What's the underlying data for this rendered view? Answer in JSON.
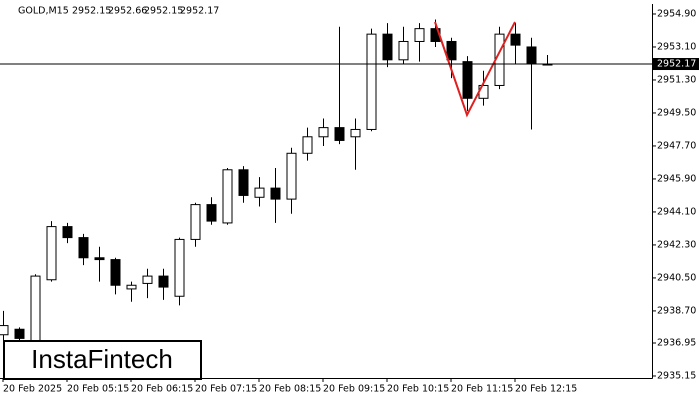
{
  "chart_data": {
    "type": "candlestick",
    "title": "GOLD,M15",
    "watermark": "InstaFintech",
    "categories": [
      "20 Feb 2025",
      null,
      null,
      null,
      "20 Feb 05:15",
      null,
      null,
      null,
      "20 Feb 06:15",
      null,
      null,
      null,
      "20 Feb 07:15",
      null,
      null,
      null,
      "20 Feb 08:15",
      null,
      null,
      null,
      "20 Feb 09:15",
      null,
      null,
      null,
      "20 Feb 10:15",
      null,
      null,
      null,
      "20 Feb 11:15",
      null,
      null,
      null,
      "20 Feb 12:15",
      null,
      null
    ],
    "series": [
      {
        "name": "GOLD",
        "color": "#000000",
        "open": [
          2937.4,
          2937.7,
          2936.8,
          2940.4,
          2943.3,
          2942.7,
          2941.6,
          2941.5,
          2939.9,
          2940.2,
          2940.6,
          2939.5,
          2942.6,
          2944.5,
          2943.5,
          2946.4,
          2944.9,
          2945.4,
          2944.8,
          2947.3,
          2948.2,
          2948.7,
          2948.2,
          2948.6,
          2953.8,
          2952.4,
          2953.4,
          2954.1,
          2953.4,
          2952.3,
          2950.3,
          2951.0,
          2953.8,
          2953.1,
          2952.15
        ],
        "high": [
          2938.7,
          2937.8,
          2940.7,
          2943.6,
          2943.5,
          2942.9,
          2942.2,
          2941.6,
          2940.3,
          2941.0,
          2941.0,
          2942.7,
          2944.6,
          2944.9,
          2946.5,
          2946.6,
          2946.0,
          2946.5,
          2947.6,
          2948.7,
          2949.2,
          2954.2,
          2949.2,
          2954.1,
          2954.4,
          2954.2,
          2954.4,
          2954.6,
          2953.6,
          2952.6,
          2951.8,
          2954.2,
          2954.4,
          2953.6,
          2952.66
        ],
        "low": [
          2936.5,
          2936.3,
          2936.5,
          2940.3,
          2942.4,
          2941.2,
          2940.3,
          2939.6,
          2939.2,
          2939.4,
          2939.3,
          2939.0,
          2942.2,
          2943.4,
          2943.4,
          2944.6,
          2944.4,
          2943.5,
          2944.0,
          2946.9,
          2947.7,
          2947.8,
          2946.4,
          2948.5,
          2952.0,
          2952.2,
          2952.3,
          2953.1,
          2951.4,
          2949.6,
          2949.9,
          2950.8,
          2952.2,
          2948.6,
          2952.15
        ],
        "close": [
          2937.9,
          2937.2,
          2940.6,
          2943.3,
          2942.7,
          2941.6,
          2941.5,
          2940.1,
          2940.1,
          2940.6,
          2940.0,
          2942.6,
          2944.5,
          2943.6,
          2946.4,
          2945.0,
          2945.4,
          2944.8,
          2947.3,
          2948.2,
          2948.7,
          2948.0,
          2948.6,
          2953.8,
          2952.4,
          2953.4,
          2954.1,
          2953.4,
          2952.4,
          2950.3,
          2951.0,
          2953.8,
          2953.2,
          2952.2,
          2952.17
        ]
      }
    ],
    "ylim": [
      2935.04,
      2955.39
    ],
    "yticks": [
      {
        "value": 2954.9,
        "label": "2954.90"
      },
      {
        "value": 2953.1,
        "label": "2953.10"
      },
      {
        "value": 2951.3,
        "label": "2951.30"
      },
      {
        "value": 2949.5,
        "label": "2949.50"
      },
      {
        "value": 2947.7,
        "label": "2947.70"
      },
      {
        "value": 2945.9,
        "label": "2945.90"
      },
      {
        "value": 2944.1,
        "label": "2944.10"
      },
      {
        "value": 2942.3,
        "label": "2942.30"
      },
      {
        "value": 2940.5,
        "label": "2940.50"
      },
      {
        "value": 2938.7,
        "label": "2938.70"
      },
      {
        "value": 2936.95,
        "label": "2936.95"
      },
      {
        "value": 2935.15,
        "label": "2935.15"
      }
    ]
  }
}
